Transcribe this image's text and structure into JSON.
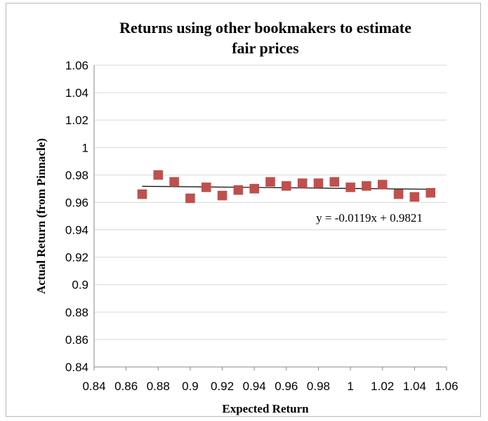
{
  "chart_data": {
    "type": "scatter",
    "title_lines": [
      "Returns using other bookmakers to estimate",
      "fair prices"
    ],
    "xlabel": "Expected Return",
    "ylabel": "Actual Return (from Pinnacle)",
    "xlim": [
      0.84,
      1.06
    ],
    "ylim": [
      0.84,
      1.06
    ],
    "x_ticks": [
      "0.84",
      "0.86",
      "0.88",
      "0.9",
      "0.92",
      "0.94",
      "0.96",
      "0.98",
      "1",
      "1.02",
      "1.04",
      "1.06"
    ],
    "y_ticks": [
      "0.84",
      "0.86",
      "0.88",
      "0.9",
      "0.92",
      "0.94",
      "0.96",
      "0.98",
      "1",
      "1.02",
      "1.04",
      "1.06"
    ],
    "grid": "horizontal",
    "marker_color": "#c0504d",
    "trendline_color": "#000000",
    "points": [
      {
        "x": 0.87,
        "y": 0.966
      },
      {
        "x": 0.88,
        "y": 0.98
      },
      {
        "x": 0.89,
        "y": 0.975
      },
      {
        "x": 0.9,
        "y": 0.963
      },
      {
        "x": 0.91,
        "y": 0.971
      },
      {
        "x": 0.92,
        "y": 0.965
      },
      {
        "x": 0.93,
        "y": 0.969
      },
      {
        "x": 0.94,
        "y": 0.97
      },
      {
        "x": 0.95,
        "y": 0.975
      },
      {
        "x": 0.96,
        "y": 0.972
      },
      {
        "x": 0.97,
        "y": 0.974
      },
      {
        "x": 0.98,
        "y": 0.974
      },
      {
        "x": 0.99,
        "y": 0.975
      },
      {
        "x": 1.0,
        "y": 0.971
      },
      {
        "x": 1.01,
        "y": 0.972
      },
      {
        "x": 1.02,
        "y": 0.973
      },
      {
        "x": 1.03,
        "y": 0.966
      },
      {
        "x": 1.04,
        "y": 0.964
      },
      {
        "x": 1.05,
        "y": 0.967
      }
    ],
    "trendline": {
      "slope": -0.0119,
      "intercept": 0.9821,
      "x_range": [
        0.87,
        1.05
      ],
      "equation": "y = -0.0119x + 0.9821"
    }
  }
}
